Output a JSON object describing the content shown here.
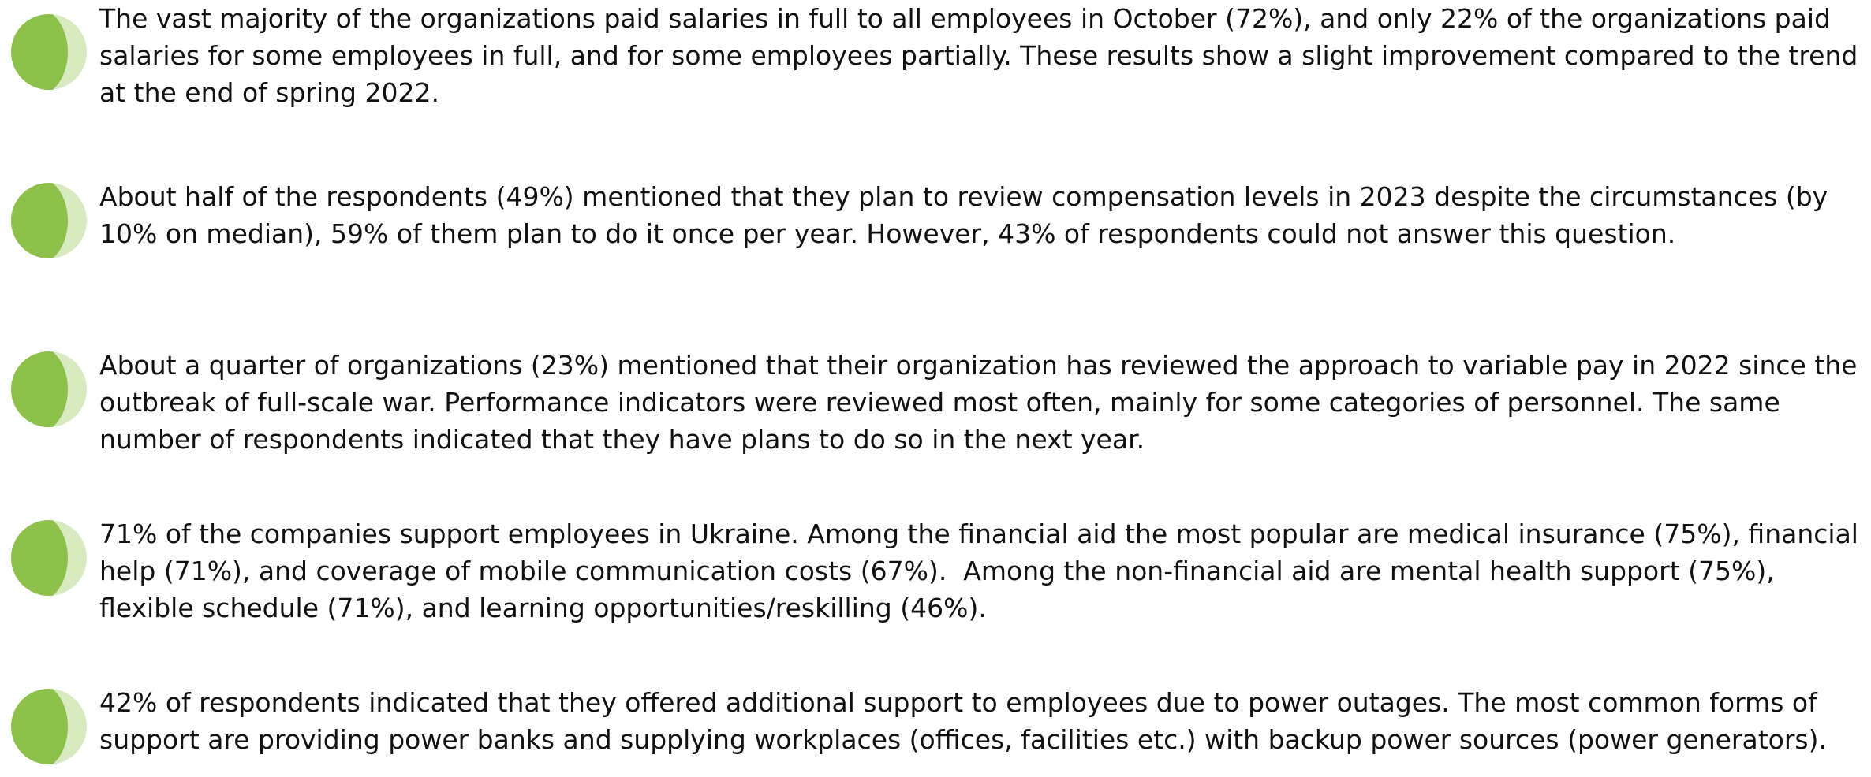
{
  "items": [
    {
      "text": "The vast majority of the organizations paid salaries in full to all employees in October (72%), and only 22% of the organizations paid salaries for some employees in full, and for some employees partially. These results show a slight improvement compared to the trend at the end of spring 2022."
    },
    {
      "text": "About half of the respondents (49%) mentioned that they plan to review compensation levels in 2023 despite the circumstances (by 10% on median), 59% of them plan to do it once per year. However, 43% of respondents could not answer this question."
    },
    {
      "text": "About a quarter of organizations (23%) mentioned that their organization has reviewed the approach to variable pay in 2022 since the outbreak of full-scale war. Performance indicators were reviewed most often, mainly for some categories of personnel. The same number of respondents indicated that they have plans to do so in the next year."
    },
    {
      "text": "71% of the companies support employees in Ukraine. Among the financial aid the most popular are medical insurance (75%), financial help (71%), and coverage of mobile communication costs (67%).  Among the non-financial aid are mental health support (75%), flexible schedule (71%), and learning opportunities/reskilling (46%)."
    },
    {
      "text": "42% of respondents indicated that they offered additional support to employees due to power outages. The most common forms of support are providing power banks and supplying workplaces (offices, facilities etc.) with backup power sources (power generators)."
    }
  ]
}
